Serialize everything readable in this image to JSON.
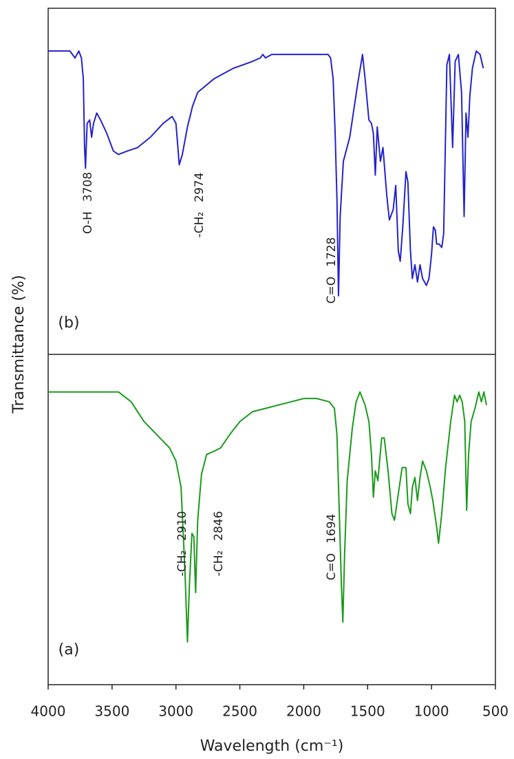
{
  "chart_data": {
    "type": "line",
    "x_label": "Wavelength (cm⁻¹)",
    "y_label": "Transmittance (%)",
    "xlim": [
      4000,
      500
    ],
    "xticks": [
      4000,
      3500,
      3000,
      2500,
      2000,
      1500,
      1000,
      500
    ],
    "panels": [
      {
        "label": "(b)",
        "ylim": [
          0,
          100
        ],
        "annotations": [
          {
            "label": "O-H",
            "value": 3708
          },
          {
            "label": "-CH₂",
            "value": 2974
          },
          {
            "label": "C=O",
            "value": 1728
          }
        ],
        "series": [
          {
            "color": "#2222cc",
            "x": [
              4000,
              3900,
              3830,
              3790,
              3760,
              3740,
              3725,
              3715,
              3708,
              3695,
              3675,
              3660,
              3645,
              3620,
              3590,
              3540,
              3490,
              3450,
              3380,
              3300,
              3200,
              3100,
              3030,
              3000,
              2974,
              2950,
              2910,
              2870,
              2830,
              2700,
              2550,
              2400,
              2340,
              2320,
              2300,
              2250,
              2150,
              2100,
              2000,
              1900,
              1810,
              1790,
              1770,
              1755,
              1740,
              1728,
              1715,
              1690,
              1640,
              1580,
              1540,
              1520,
              1490,
              1470,
              1455,
              1440,
              1425,
              1400,
              1380,
              1350,
              1330,
              1300,
              1280,
              1260,
              1245,
              1225,
              1200,
              1185,
              1165,
              1150,
              1130,
              1110,
              1090,
              1070,
              1040,
              1020,
              1000,
              985,
              970,
              960,
              940,
              920,
              905,
              880,
              860,
              835,
              815,
              790,
              765,
              745,
              730,
              715,
              700,
              680,
              650,
              620,
              595
            ],
            "values": [
              88,
              88,
              88,
              86,
              88,
              86,
              80,
              60,
              54,
              67,
              68,
              63,
              67,
              70,
              68,
              64,
              59,
              58,
              59,
              60,
              63,
              67,
              69,
              67,
              55,
              58,
              66,
              72,
              76,
              80,
              83,
              85,
              86,
              87,
              86,
              87,
              87,
              87,
              87,
              87,
              87,
              86,
              80,
              65,
              45,
              17,
              40,
              56,
              63,
              78,
              87,
              80,
              68,
              67,
              64,
              52,
              66,
              56,
              60,
              46,
              39,
              42,
              49,
              30,
              27,
              37,
              53,
              50,
              30,
              22,
              26,
              21,
              26,
              22,
              20,
              22,
              29,
              37,
              36,
              32,
              32,
              31,
              35,
              84,
              87,
              60,
              85,
              87,
              76,
              40,
              70,
              63,
              75,
              83,
              88,
              87,
              83
            ]
          }
        ]
      },
      {
        "label": "(a)",
        "ylim": [
          0,
          100
        ],
        "annotations": [
          {
            "label": "-CH₂",
            "value": 2910
          },
          {
            "label": "-CH₂",
            "value": 2846
          },
          {
            "label": "C=O",
            "value": 1694
          }
        ],
        "series": [
          {
            "color": "#1a9a1a",
            "x": [
              4000,
              3800,
              3600,
              3450,
              3350,
              3250,
              3150,
              3050,
              3000,
              2960,
              2930,
              2910,
              2895,
              2875,
              2860,
              2846,
              2830,
              2800,
              2760,
              2700,
              2650,
              2580,
              2500,
              2400,
              2300,
              2200,
              2100,
              2000,
              1900,
              1800,
              1760,
              1740,
              1720,
              1705,
              1694,
              1680,
              1660,
              1620,
              1590,
              1560,
              1520,
              1490,
              1470,
              1455,
              1440,
              1420,
              1390,
              1370,
              1340,
              1310,
              1290,
              1260,
              1230,
              1200,
              1185,
              1165,
              1150,
              1130,
              1110,
              1090,
              1070,
              1040,
              1010,
              990,
              960,
              945,
              920,
              890,
              850,
              820,
              800,
              780,
              760,
              740,
              725,
              710,
              690,
              660,
              630,
              610,
              590,
              570
            ],
            "values": [
              89,
              89,
              89,
              89,
              86,
              80,
              76,
              72,
              68,
              60,
              35,
              13,
              30,
              46,
              45,
              28,
              50,
              64,
              70,
              71,
              72,
              76,
              80,
              83,
              84,
              85,
              86,
              87,
              87,
              86,
              84,
              76,
              50,
              30,
              19,
              40,
              62,
              78,
              86,
              89,
              85,
              80,
              70,
              57,
              65,
              62,
              75,
              75,
              65,
              52,
              50,
              58,
              66,
              66,
              55,
              52,
              60,
              63,
              56,
              63,
              68,
              65,
              60,
              56,
              48,
              43,
              52,
              66,
              80,
              88,
              86,
              88,
              86,
              80,
              53,
              70,
              80,
              84,
              89,
              86,
              89,
              85
            ]
          }
        ]
      }
    ]
  }
}
